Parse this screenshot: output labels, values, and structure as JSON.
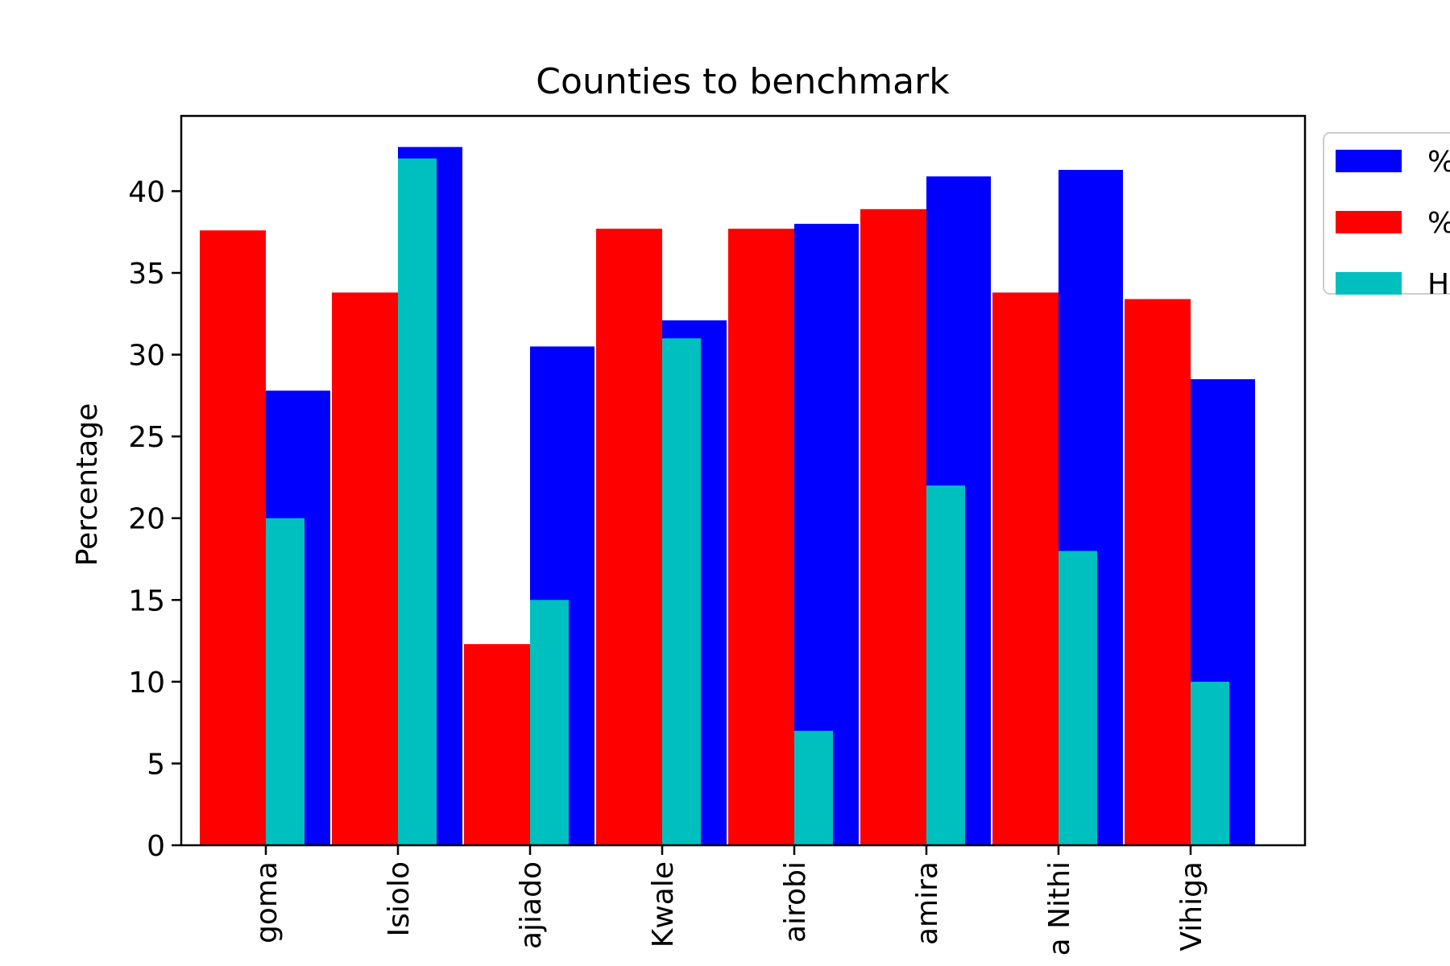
{
  "chart_data": {
    "type": "bar",
    "title": "Counties to benchmark",
    "xlabel": "",
    "ylabel": "Percentage",
    "ylim": [
      0,
      44.6
    ],
    "yticks": [
      0,
      5,
      10,
      15,
      20,
      25,
      30,
      35,
      40
    ],
    "grid": false,
    "legend_position": "outside-right",
    "categories": [
      "goma",
      "Isiolo",
      "ajiado",
      "Kwale",
      "airobi",
      "amira",
      "a Nithi",
      "Vihiga"
    ],
    "series": [
      {
        "name": "%",
        "color": "#0000ff",
        "values": [
          27.8,
          42.7,
          30.5,
          32.1,
          38.0,
          40.9,
          41.3,
          28.5
        ]
      },
      {
        "name": "%",
        "color": "#ff0000",
        "values": [
          37.6,
          33.8,
          12.3,
          37.7,
          37.7,
          38.9,
          33.8,
          33.4
        ]
      },
      {
        "name": "H",
        "color": "#00bfbf",
        "values": [
          20,
          42,
          15,
          31,
          7,
          22,
          18,
          10
        ]
      }
    ]
  }
}
